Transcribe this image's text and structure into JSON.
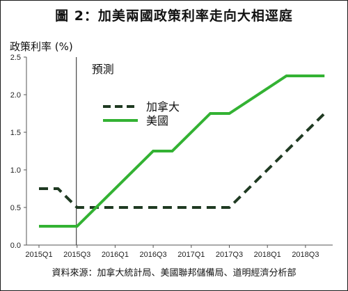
{
  "title": "圖 2：加美兩國政策利率走向大相逕庭",
  "source": "資料來源：加拿大統計局、美國聯邦儲備局、道明經濟分析部",
  "chart_data": {
    "type": "line",
    "title": "圖 2：加美兩國政策利率走向大相逕庭",
    "ylabel": "政策利率 (%)",
    "xlabel": "",
    "ylim": [
      0,
      2.5
    ],
    "yticks": [
      "0.0",
      "0.5",
      "1.0",
      "1.5",
      "2.0",
      "2.5"
    ],
    "xticks": [
      "2015Q1",
      "2015Q3",
      "2016Q1",
      "2016Q3",
      "2017Q1",
      "2017Q3",
      "2018Q1",
      "2018Q3"
    ],
    "annotation": {
      "label": "預測",
      "x": "2015Q3"
    },
    "legend_position": "upper-center",
    "grid": false,
    "series": [
      {
        "name": "加拿大",
        "style": "dashed",
        "color": "#1f3a22",
        "points": [
          {
            "x": "2015Q1",
            "y": 0.75
          },
          {
            "x": "2015Q2",
            "y": 0.75
          },
          {
            "x": "2015Q3",
            "y": 0.5
          },
          {
            "x": "2017Q3",
            "y": 0.5
          },
          {
            "x": "2018Q4",
            "y": 1.75
          }
        ]
      },
      {
        "name": "美國",
        "style": "solid",
        "color": "#33b233",
        "points": [
          {
            "x": "2015Q1",
            "y": 0.25
          },
          {
            "x": "2015Q3",
            "y": 0.25
          },
          {
            "x": "2016Q3",
            "y": 1.25
          },
          {
            "x": "2016Q4",
            "y": 1.25
          },
          {
            "x": "2017Q2",
            "y": 1.75
          },
          {
            "x": "2017Q3",
            "y": 1.75
          },
          {
            "x": "2018Q2",
            "y": 2.25
          },
          {
            "x": "2018Q4",
            "y": 2.25
          }
        ]
      }
    ]
  }
}
